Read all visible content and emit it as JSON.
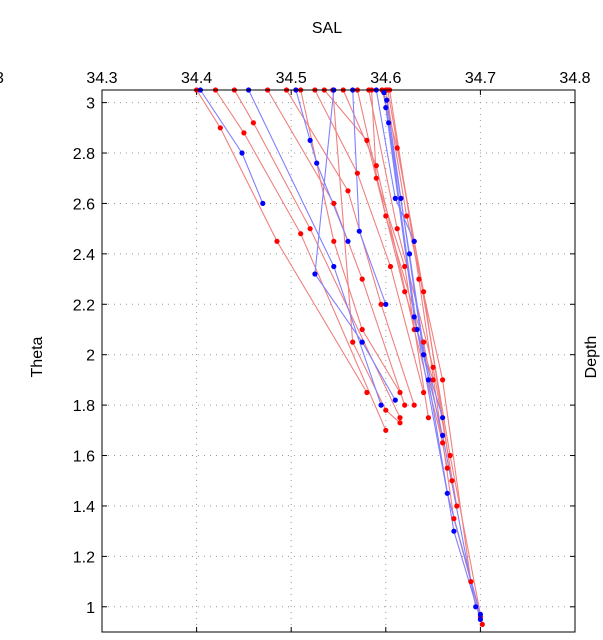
{
  "chart_data": {
    "type": "line",
    "title": "",
    "xlabel": "SAL",
    "ylabel": "Theta",
    "side_label": "Depth",
    "left_fragment": "3",
    "x_axis_position": "top",
    "xlim": [
      34.3,
      34.8
    ],
    "ylim": [
      0.9,
      3.05
    ],
    "xticks": [
      34.3,
      34.4,
      34.5,
      34.6,
      34.7,
      34.8
    ],
    "xtick_labels": [
      "34.3",
      "34.4",
      "34.5",
      "34.6",
      "34.7",
      "34.8"
    ],
    "yticks": [
      1,
      1.2,
      1.4,
      1.6,
      1.8,
      2,
      2.2,
      2.4,
      2.6,
      2.8,
      3
    ],
    "ytick_labels": [
      "1",
      "1.2",
      "1.4",
      "1.6",
      "1.8",
      "2",
      "2.2",
      "2.4",
      "2.6",
      "2.8",
      "3"
    ],
    "grid": true,
    "colors": {
      "red": "#ff0000",
      "blue": "#0000ff",
      "red_line": "#f08080",
      "blue_line": "#8080ff"
    },
    "series": [
      {
        "color": "blue",
        "points": [
          [
            34.598,
            3.04
          ],
          [
            34.625,
            2.4
          ],
          [
            34.645,
            1.9
          ],
          [
            34.672,
            1.3
          ],
          [
            34.7,
            0.95
          ]
        ]
      },
      {
        "color": "blue",
        "points": [
          [
            34.6,
            2.98
          ],
          [
            34.63,
            2.15
          ],
          [
            34.66,
            1.68
          ],
          [
            34.695,
            1.0
          ]
        ]
      },
      {
        "color": "blue",
        "points": [
          [
            34.603,
            2.92
          ],
          [
            34.633,
            2.1
          ],
          [
            34.665,
            1.45
          ],
          [
            34.7,
            0.97
          ]
        ]
      },
      {
        "color": "blue",
        "points": [
          [
            34.601,
            3.01
          ],
          [
            34.616,
            2.62
          ],
          [
            34.64,
            2.0
          ],
          [
            34.66,
            1.75
          ]
        ]
      },
      {
        "color": "blue",
        "points": [
          [
            34.404,
            3.05
          ],
          [
            34.448,
            2.8
          ],
          [
            34.47,
            2.6
          ]
        ]
      },
      {
        "color": "blue",
        "points": [
          [
            34.455,
            3.05
          ],
          [
            34.545,
            2.35
          ],
          [
            34.595,
            1.8
          ]
        ]
      },
      {
        "color": "blue",
        "points": [
          [
            34.505,
            3.05
          ],
          [
            34.52,
            2.85
          ],
          [
            34.527,
            2.76
          ],
          [
            34.56,
            2.45
          ]
        ]
      },
      {
        "color": "blue",
        "points": [
          [
            34.545,
            3.05
          ],
          [
            34.525,
            2.32
          ],
          [
            34.575,
            2.05
          ],
          [
            34.61,
            1.82
          ]
        ]
      },
      {
        "color": "blue",
        "points": [
          [
            34.565,
            3.05
          ],
          [
            34.572,
            2.49
          ],
          [
            34.6,
            2.2
          ]
        ]
      },
      {
        "color": "blue",
        "points": [
          [
            34.59,
            3.05
          ],
          [
            34.61,
            2.62
          ],
          [
            34.63,
            2.45
          ]
        ]
      },
      {
        "color": "red",
        "points": [
          [
            34.4,
            3.05
          ],
          [
            34.425,
            2.9
          ],
          [
            34.485,
            2.45
          ],
          [
            34.58,
            1.85
          ]
        ]
      },
      {
        "color": "red",
        "points": [
          [
            34.42,
            3.05
          ],
          [
            34.45,
            2.88
          ],
          [
            34.51,
            2.48
          ],
          [
            34.6,
            1.7
          ]
        ]
      },
      {
        "color": "red",
        "points": [
          [
            34.44,
            3.05
          ],
          [
            34.46,
            2.92
          ],
          [
            34.52,
            2.5
          ],
          [
            34.615,
            1.75
          ]
        ]
      },
      {
        "color": "red",
        "points": [
          [
            34.475,
            3.05
          ],
          [
            34.545,
            2.6
          ],
          [
            34.575,
            2.3
          ],
          [
            34.62,
            1.8
          ]
        ]
      },
      {
        "color": "red",
        "points": [
          [
            34.495,
            3.05
          ],
          [
            34.56,
            2.65
          ],
          [
            34.595,
            2.2
          ],
          [
            34.63,
            1.8
          ]
        ]
      },
      {
        "color": "red",
        "points": [
          [
            34.525,
            3.05
          ],
          [
            34.57,
            2.72
          ],
          [
            34.605,
            2.35
          ],
          [
            34.64,
            1.85
          ]
        ]
      },
      {
        "color": "red",
        "points": [
          [
            34.535,
            3.05
          ],
          [
            34.58,
            2.85
          ],
          [
            34.62,
            2.25
          ],
          [
            34.65,
            1.9
          ]
        ]
      },
      {
        "color": "red",
        "points": [
          [
            34.555,
            3.05
          ],
          [
            34.59,
            2.75
          ],
          [
            34.63,
            2.1
          ],
          [
            34.66,
            1.65
          ]
        ]
      },
      {
        "color": "red",
        "points": [
          [
            34.57,
            3.05
          ],
          [
            34.6,
            2.55
          ],
          [
            34.64,
            2.05
          ],
          [
            34.665,
            1.55
          ]
        ]
      },
      {
        "color": "red",
        "points": [
          [
            34.582,
            3.05
          ],
          [
            34.612,
            2.5
          ],
          [
            34.65,
            1.95
          ],
          [
            34.675,
            1.4
          ]
        ]
      },
      {
        "color": "red",
        "points": [
          [
            34.596,
            3.05
          ],
          [
            34.612,
            2.82
          ],
          [
            34.64,
            2.25
          ],
          [
            34.67,
            1.5
          ]
        ]
      },
      {
        "color": "red",
        "points": [
          [
            34.6,
            3.05
          ],
          [
            34.622,
            2.55
          ],
          [
            34.66,
            1.9
          ],
          [
            34.69,
            1.1
          ]
        ]
      },
      {
        "color": "red",
        "points": [
          [
            34.602,
            3.05
          ],
          [
            34.63,
            2.45
          ],
          [
            34.668,
            1.6
          ],
          [
            34.702,
            0.93
          ]
        ]
      },
      {
        "color": "red",
        "points": [
          [
            34.604,
            3.05
          ],
          [
            34.635,
            2.3
          ],
          [
            34.672,
            1.35
          ],
          [
            34.7,
            0.96
          ]
        ]
      },
      {
        "color": "red",
        "points": [
          [
            34.544,
            3.05
          ],
          [
            34.565,
            2.05
          ],
          [
            34.6,
            1.78
          ],
          [
            34.615,
            1.73
          ]
        ]
      },
      {
        "color": "red",
        "points": [
          [
            34.51,
            3.05
          ],
          [
            34.545,
            2.45
          ],
          [
            34.575,
            2.1
          ],
          [
            34.615,
            1.85
          ]
        ]
      },
      {
        "color": "red",
        "points": [
          [
            34.585,
            3.05
          ],
          [
            34.59,
            2.7
          ],
          [
            34.62,
            2.35
          ],
          [
            34.645,
            1.75
          ]
        ]
      }
    ]
  }
}
